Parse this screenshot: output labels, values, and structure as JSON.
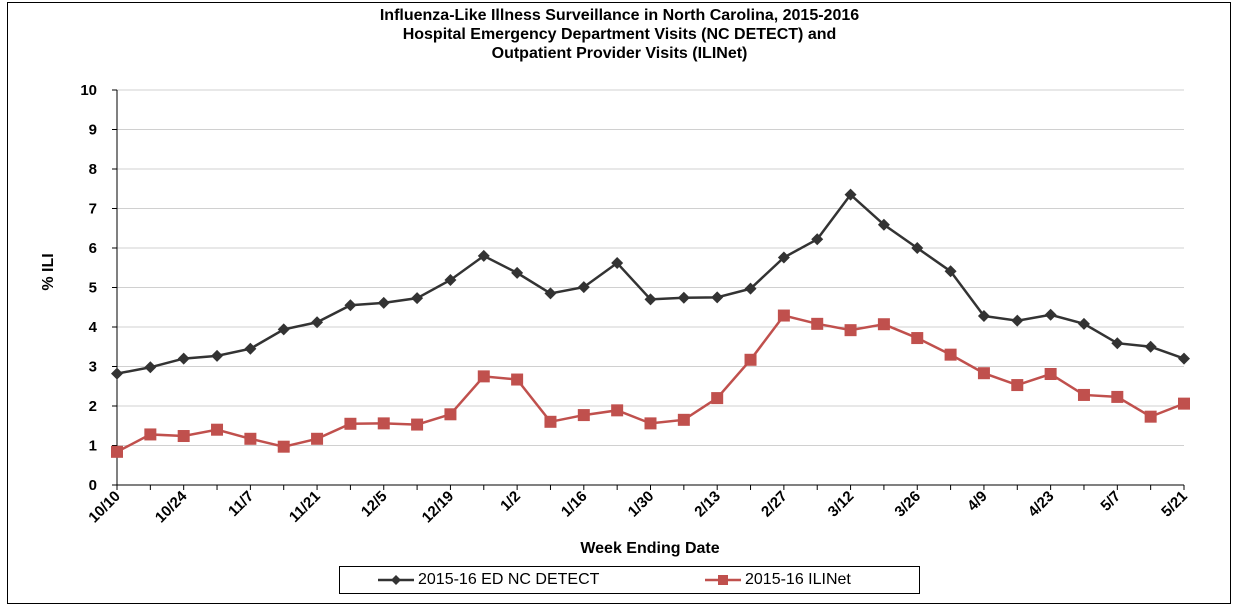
{
  "chart_data": {
    "type": "line",
    "title": "Influenza-Like Illness Surveillance in North Carolina, 2015-2016",
    "subtitle_lines": [
      "Hospital Emergency Department Visits (NC DETECT) and",
      "Outpatient Provider Visits (ILINet)"
    ],
    "xlabel": "Week Ending Date",
    "ylabel": "% ILI",
    "ylim": [
      0,
      10
    ],
    "yticks": [
      0,
      1,
      2,
      3,
      4,
      5,
      6,
      7,
      8,
      9,
      10
    ],
    "grid": true,
    "legend_position": "bottom",
    "x": [
      "10/10",
      "10/17",
      "10/24",
      "10/31",
      "11/7",
      "11/14",
      "11/21",
      "11/28",
      "12/5",
      "12/12",
      "12/19",
      "12/26",
      "1/2",
      "1/9",
      "1/16",
      "1/23",
      "1/30",
      "2/6",
      "2/13",
      "2/20",
      "2/27",
      "3/5",
      "3/12",
      "3/19",
      "3/26",
      "4/2",
      "4/9",
      "4/16",
      "4/23",
      "4/30",
      "5/7",
      "5/14",
      "5/21"
    ],
    "x_tick_labels": [
      "10/10",
      "10/24",
      "11/7",
      "11/21",
      "12/5",
      "12/19",
      "1/2",
      "1/16",
      "1/30",
      "2/13",
      "2/27",
      "3/12",
      "3/26",
      "4/9",
      "4/23",
      "5/7",
      "5/21"
    ],
    "series": [
      {
        "name": "2015-16 ED NC DETECT",
        "color": "#333333",
        "marker": "diamond",
        "values": [
          2.82,
          2.98,
          3.2,
          3.27,
          3.45,
          3.94,
          4.12,
          4.55,
          4.61,
          4.73,
          5.19,
          5.8,
          5.37,
          4.85,
          5.01,
          5.62,
          4.7,
          4.74,
          4.75,
          4.97,
          5.76,
          6.22,
          7.35,
          6.59,
          6.0,
          5.41,
          4.28,
          4.16,
          4.31,
          4.08,
          3.59,
          3.5,
          3.2
        ]
      },
      {
        "name": "2015-16 ILINet",
        "color": "#c0504d",
        "marker": "square",
        "values": [
          0.84,
          1.28,
          1.24,
          1.4,
          1.17,
          0.97,
          1.17,
          1.55,
          1.56,
          1.53,
          1.79,
          2.75,
          2.67,
          1.6,
          1.77,
          1.89,
          1.56,
          1.65,
          2.2,
          3.17,
          4.29,
          4.08,
          3.92,
          4.07,
          3.72,
          3.3,
          2.83,
          2.53,
          2.81,
          2.28,
          2.23,
          1.73,
          2.06
        ]
      }
    ]
  }
}
